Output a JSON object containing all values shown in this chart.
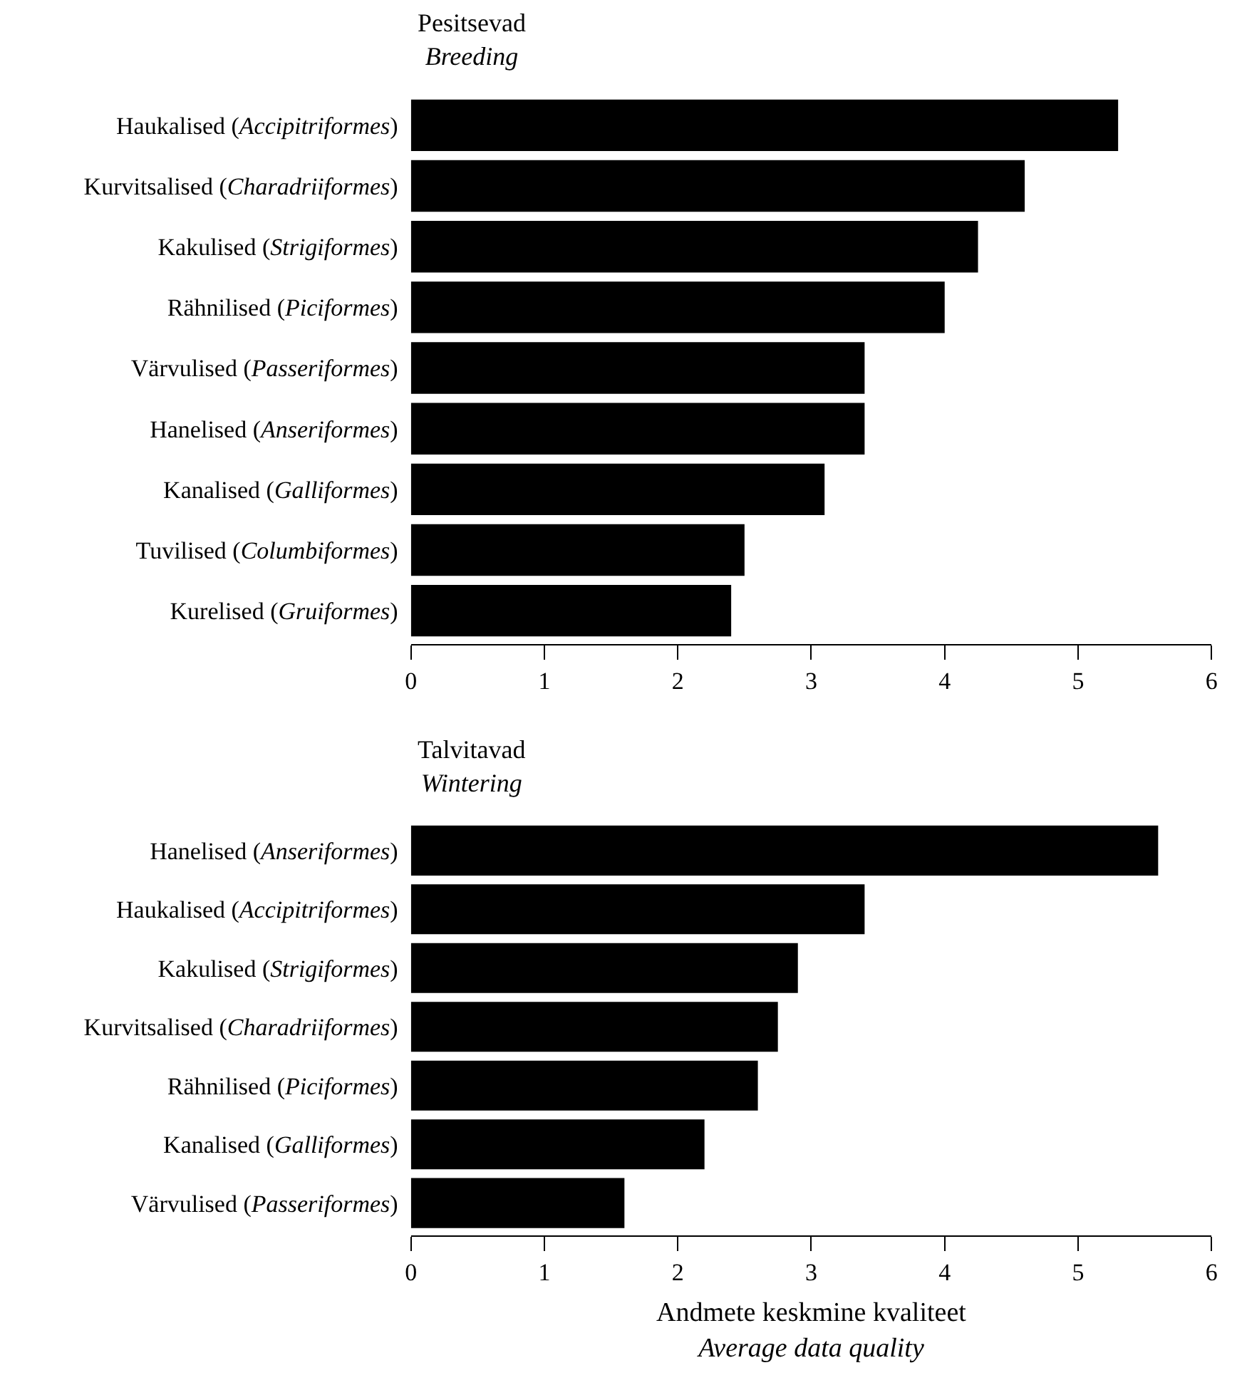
{
  "chart_data": [
    {
      "type": "bar",
      "orientation": "horizontal",
      "title": "Pesitsevad",
      "subtitle": "Breeding",
      "categories": [
        "Haukalised (Accipitriformes)",
        "Kurvitsalised (Charadriiformes)",
        "Kakulised (Strigiformes)",
        "Rähnilised (Piciformes)",
        "Värvulised (Passeriformes)",
        "Hanelised (Anseriformes)",
        "Kanalised (Galliformes)",
        "Tuvilised (Columbiformes)",
        "Kurelised (Gruiformes)"
      ],
      "values": [
        5.3,
        4.6,
        4.25,
        4.0,
        3.4,
        3.4,
        3.1,
        2.5,
        2.4
      ],
      "color": "#000000",
      "xlim": [
        0,
        6
      ],
      "xticks": [
        0,
        1,
        2,
        3,
        4,
        5,
        6
      ]
    },
    {
      "type": "bar",
      "orientation": "horizontal",
      "title": "Talvitavad",
      "subtitle": "Wintering",
      "categories": [
        "Hanelised (Anseriformes)",
        "Haukalised (Accipitriformes)",
        "Kakulised (Strigiformes)",
        "Kurvitsalised (Charadriiformes)",
        "Rähnilised (Piciformes)",
        "Kanalised (Galliformes)",
        "Värvulised (Passeriformes)"
      ],
      "values": [
        5.6,
        3.4,
        2.9,
        2.75,
        2.6,
        2.2,
        1.6
      ],
      "color": "#000000",
      "xlim": [
        0,
        6
      ],
      "xticks": [
        0,
        1,
        2,
        3,
        4,
        5,
        6
      ],
      "xlabel": "Andmete keskmine kvaliteet\nAverage data quality"
    }
  ]
}
